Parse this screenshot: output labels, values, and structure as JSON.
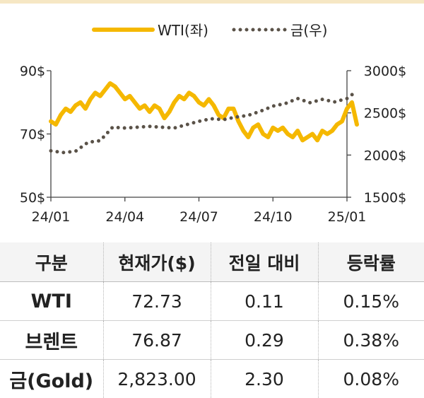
{
  "chart_data": {
    "type": "line",
    "legend": {
      "placement": "top-center",
      "entries": [
        "WTI(좌)",
        "금(우)"
      ]
    },
    "x_ticks": [
      "24/01",
      "24/04",
      "24/07",
      "24/10",
      "25/01"
    ],
    "y_left": {
      "ticks": [
        "90$",
        "70$",
        "50$"
      ],
      "range": [
        50,
        90
      ]
    },
    "y_right": {
      "ticks": [
        "3000$",
        "2500$",
        "2000$",
        "1500$"
      ],
      "range": [
        1500,
        3000
      ]
    },
    "grid": false,
    "series": [
      {
        "name": "WTI(좌)",
        "axis": "left",
        "style": "solid",
        "color": "#f5b800",
        "x": [
          0,
          0.2,
          0.4,
          0.6,
          0.8,
          1.0,
          1.2,
          1.4,
          1.6,
          1.8,
          2.0,
          2.2,
          2.4,
          2.6,
          2.8,
          3.0,
          3.2,
          3.4,
          3.6,
          3.8,
          4.0,
          4.2,
          4.4,
          4.6,
          4.8,
          5.0,
          5.2,
          5.4,
          5.6,
          5.8,
          6.0,
          6.2,
          6.4,
          6.6,
          6.8,
          7.0,
          7.2,
          7.4,
          7.6,
          7.8,
          8.0,
          8.2,
          8.4,
          8.6,
          8.8,
          9.0,
          9.2,
          9.4,
          9.6,
          9.8,
          10.0,
          10.2,
          10.4,
          10.6,
          10.8,
          11.0,
          11.2,
          11.4,
          11.6,
          11.8,
          12.0,
          12.2,
          12.4
        ],
        "values": [
          74,
          73,
          76,
          78,
          77,
          79,
          80,
          78,
          81,
          83,
          82,
          84,
          86,
          85,
          83,
          81,
          82,
          80,
          78,
          79,
          77,
          79,
          78,
          75,
          77,
          80,
          82,
          81,
          83,
          82,
          80,
          79,
          81,
          79,
          76,
          75,
          78,
          78,
          74,
          71,
          69,
          72,
          73,
          70,
          69,
          72,
          71,
          72,
          70,
          69,
          71,
          68,
          69,
          70,
          68,
          71,
          70,
          71,
          73,
          74,
          78,
          80,
          73
        ]
      },
      {
        "name": "금(우)",
        "axis": "right",
        "style": "dotted",
        "color": "#5a5248",
        "x": [
          0,
          0.5,
          1.0,
          1.5,
          2.0,
          2.5,
          3.0,
          3.5,
          4.0,
          4.5,
          5.0,
          5.5,
          6.0,
          6.5,
          7.0,
          7.5,
          8.0,
          8.5,
          9.0,
          9.5,
          10.0,
          10.5,
          11.0,
          11.5,
          12.0,
          12.4
        ],
        "values": [
          2050,
          2030,
          2045,
          2150,
          2170,
          2330,
          2320,
          2330,
          2340,
          2330,
          2320,
          2360,
          2400,
          2430,
          2420,
          2450,
          2470,
          2520,
          2580,
          2610,
          2670,
          2620,
          2660,
          2630,
          2670,
          2760
        ]
      }
    ]
  },
  "table": {
    "headers": [
      "구분",
      "현재가($)",
      "전일 대비",
      "등락률"
    ],
    "rows": [
      [
        "WTI",
        "72.73",
        "0.11",
        "0.15%"
      ],
      [
        "브렌트",
        "76.87",
        "0.29",
        "0.38%"
      ],
      [
        "금(Gold)",
        "2,823.00",
        "2.30",
        "0.08%"
      ]
    ]
  }
}
